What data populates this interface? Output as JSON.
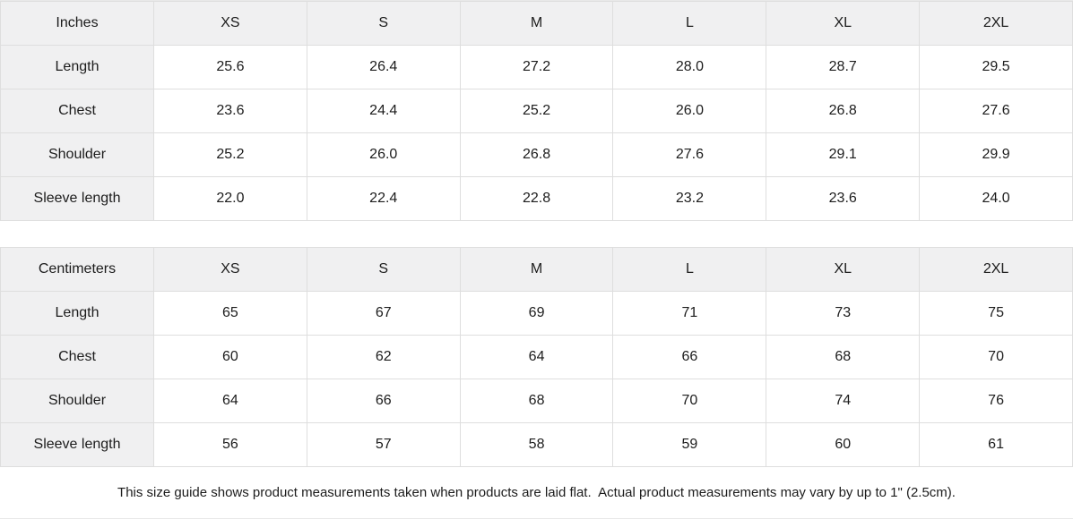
{
  "tables": [
    {
      "unit_label": "Inches",
      "columns": [
        "XS",
        "S",
        "M",
        "L",
        "XL",
        "2XL"
      ],
      "rows": [
        {
          "label": "Length",
          "values": [
            "25.6",
            "26.4",
            "27.2",
            "28.0",
            "28.7",
            "29.5"
          ]
        },
        {
          "label": "Chest",
          "values": [
            "23.6",
            "24.4",
            "25.2",
            "26.0",
            "26.8",
            "27.6"
          ]
        },
        {
          "label": "Shoulder",
          "values": [
            "25.2",
            "26.0",
            "26.8",
            "27.6",
            "29.1",
            "29.9"
          ]
        },
        {
          "label": "Sleeve length",
          "values": [
            "22.0",
            "22.4",
            "22.8",
            "23.2",
            "23.6",
            "24.0"
          ]
        }
      ]
    },
    {
      "unit_label": "Centimeters",
      "columns": [
        "XS",
        "S",
        "M",
        "L",
        "XL",
        "2XL"
      ],
      "rows": [
        {
          "label": "Length",
          "values": [
            "65",
            "67",
            "69",
            "71",
            "73",
            "75"
          ]
        },
        {
          "label": "Chest",
          "values": [
            "60",
            "62",
            "64",
            "66",
            "68",
            "70"
          ]
        },
        {
          "label": "Shoulder",
          "values": [
            "64",
            "66",
            "68",
            "70",
            "74",
            "76"
          ]
        },
        {
          "label": "Sleeve length",
          "values": [
            "56",
            "57",
            "58",
            "59",
            "60",
            "61"
          ]
        }
      ]
    }
  ],
  "footnote": "This size guide shows product measurements taken when products are laid flat.  Actual product measurements may vary by up to 1\" (2.5cm).",
  "colors": {
    "header_bg": "#f0f0f1",
    "grid_line": "#dedede",
    "text": "#1c1c1c",
    "background": "#ffffff"
  }
}
